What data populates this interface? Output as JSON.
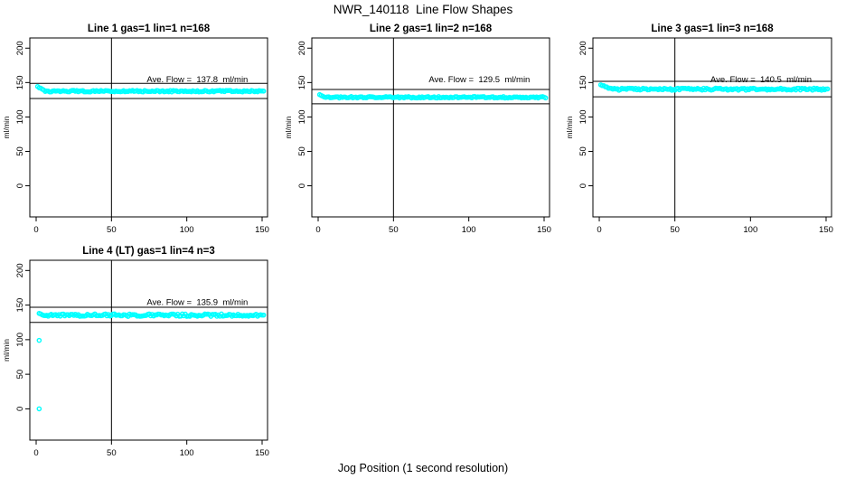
{
  "page": {
    "title": "NWR_140118  Line Flow Shapes",
    "xlabel": "Jog Position (1 second resolution)"
  },
  "colors": {
    "marker": "#00FFFF",
    "axis": "#000000",
    "text": "#000000",
    "background": "#FFFFFF"
  },
  "chart_data": [
    {
      "type": "scatter",
      "title": "Line 1 gas=1 lin=1 n=168",
      "ylabel": "ml/min",
      "marker": "open-circle",
      "x_ticks": [
        0,
        50,
        100,
        150
      ],
      "y_ticks": [
        0,
        50,
        100,
        150,
        200
      ],
      "xlim": [
        -4.2,
        153.6
      ],
      "ylim": [
        -45.2,
        214.8
      ],
      "vline_x": 50,
      "ave_flow": 137.8,
      "annotation": "Ave. Flow =  137.8  ml/min",
      "ref_lines": {
        "upper": 148.8,
        "lower": 126.8
      },
      "series": {
        "x_start": 1,
        "x_end": 151,
        "step": 1,
        "start_y": 144,
        "settle_y": 137.5,
        "settle_after": 5,
        "jitter": 1.1,
        "extra_points": []
      }
    },
    {
      "type": "scatter",
      "title": "Line 2 gas=1 lin=2 n=168",
      "ylabel": "ml/min",
      "marker": "open-circle",
      "x_ticks": [
        0,
        50,
        100,
        150
      ],
      "y_ticks": [
        0,
        50,
        100,
        150,
        200
      ],
      "xlim": [
        -4.2,
        153.6
      ],
      "ylim": [
        -45.2,
        214.8
      ],
      "vline_x": 50,
      "ave_flow": 129.5,
      "annotation": "Ave. Flow =  129.5  ml/min",
      "ref_lines": {
        "upper": 139.9,
        "lower": 119.1
      },
      "series": {
        "x_start": 1,
        "x_end": 151,
        "step": 1,
        "start_y": 132,
        "settle_y": 128.6,
        "settle_after": 4,
        "jitter": 1.1,
        "extra_points": []
      }
    },
    {
      "type": "scatter",
      "title": "Line 3 gas=1 lin=3 n=168",
      "ylabel": "ml/min",
      "marker": "open-circle",
      "x_ticks": [
        0,
        50,
        100,
        150
      ],
      "y_ticks": [
        0,
        50,
        100,
        150,
        200
      ],
      "xlim": [
        -4.2,
        153.6
      ],
      "ylim": [
        -45.2,
        214.8
      ],
      "vline_x": 50,
      "ave_flow": 140.5,
      "annotation": "Ave. Flow =  140.5  ml/min",
      "ref_lines": {
        "upper": 151.7,
        "lower": 129.3
      },
      "series": {
        "x_start": 1,
        "x_end": 151,
        "step": 1,
        "start_y": 147,
        "settle_y": 140.3,
        "settle_after": 7,
        "jitter": 1.5,
        "extra_points": []
      }
    },
    {
      "type": "scatter",
      "title": "Line 4 (LT) gas=1 lin=4 n=3",
      "ylabel": "ml/min",
      "marker": "open-circle",
      "x_ticks": [
        0,
        50,
        100,
        150
      ],
      "y_ticks": [
        0,
        50,
        100,
        150,
        200
      ],
      "xlim": [
        -4.2,
        153.6
      ],
      "ylim": [
        -45.2,
        214.8
      ],
      "vline_x": 50,
      "ave_flow": 135.9,
      "annotation": "Ave. Flow =  135.9  ml/min",
      "ref_lines": {
        "upper": 146.8,
        "lower": 125.0
      },
      "series": {
        "x_start": 2,
        "x_end": 151,
        "step": 1,
        "start_y": 138,
        "settle_y": 135.4,
        "settle_after": 3,
        "jitter": 1.8,
        "extra_points": [
          {
            "x": 2,
            "y": 0
          },
          {
            "x": 2,
            "y": 99
          }
        ]
      }
    }
  ]
}
